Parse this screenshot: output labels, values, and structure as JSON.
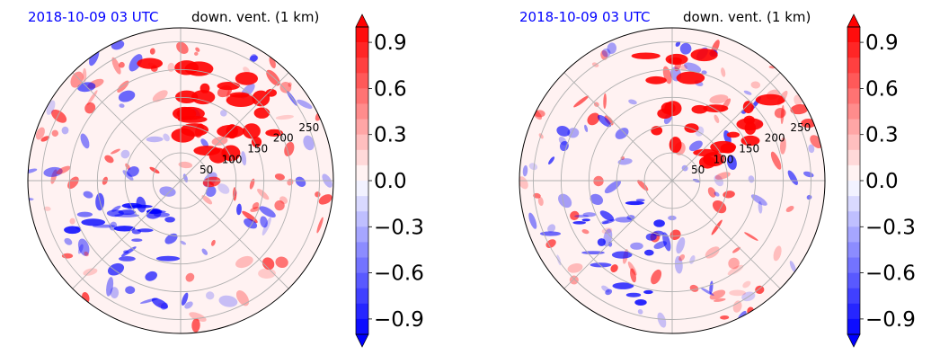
{
  "chart_data": [
    {
      "type": "heatmap",
      "projection": "polar",
      "title_left": "2018-10-09 03 UTC",
      "title_right": "down. vent. (1 km)",
      "title_left_color": "#0000ff",
      "radial_ticks": [
        50,
        100,
        150,
        200,
        250
      ],
      "radial_max": 275,
      "colorbar": {
        "min": -1.0,
        "max": 1.0,
        "extend": "both",
        "ticks": [
          -0.9,
          -0.6,
          -0.3,
          0.0,
          0.3,
          0.6,
          0.9
        ],
        "tick_labels": [
          "−0.9",
          "−0.6",
          "−0.3",
          "0.0",
          "0.3",
          "0.6",
          "0.9"
        ],
        "colormap": "bwr",
        "colors": {
          "negative": "#0000ff",
          "zero": "#ffffff",
          "positive": "#ff0000"
        }
      },
      "grid": true,
      "seed": 7
    },
    {
      "type": "heatmap",
      "projection": "polar",
      "title_left": "2018-10-09 03 UTC",
      "title_right": "down. vent. (1 km)",
      "title_left_color": "#0000ff",
      "radial_ticks": [
        50,
        100,
        150,
        200,
        250
      ],
      "radial_max": 275,
      "colorbar": {
        "min": -1.0,
        "max": 1.0,
        "extend": "both",
        "ticks": [
          -0.9,
          -0.6,
          -0.3,
          0.0,
          0.3,
          0.6,
          0.9
        ],
        "tick_labels": [
          "−0.9",
          "−0.6",
          "−0.3",
          "0.0",
          "0.3",
          "0.6",
          "0.9"
        ],
        "colormap": "bwr",
        "colors": {
          "negative": "#0000ff",
          "zero": "#ffffff",
          "positive": "#ff0000"
        }
      },
      "grid": true,
      "seed": 23
    }
  ]
}
